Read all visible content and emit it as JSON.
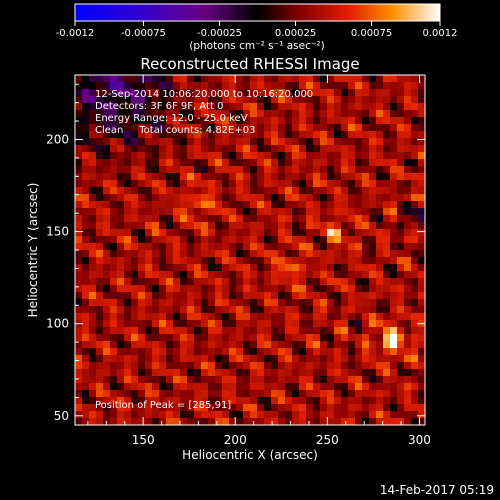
{
  "chart_data": {
    "type": "heatmap",
    "title": "Reconstructed RHESSI Image",
    "xlabel": "Heliocentric X (arcsec)",
    "ylabel": "Heliocentric Y (arcsec)",
    "xlim": [
      113,
      303
    ],
    "ylim": [
      45,
      235
    ],
    "xticks": [
      150,
      200,
      250,
      300
    ],
    "yticks": [
      50,
      100,
      150,
      200
    ],
    "colorbar": {
      "min": -0.0012,
      "max": 0.0012,
      "ticks": [
        "-0.0012",
        "-0.00075",
        "-0.00025",
        "0.00025",
        "0.00075",
        "0.0012"
      ],
      "tick_values": [
        -0.0012,
        -0.00075,
        -0.00025,
        0.00025,
        0.00075,
        0.0012
      ],
      "unit_label": "(photons cm⁻² s⁻¹ asec⁻²)"
    },
    "annotations": [
      "12-Sep-2014 10:06:20.000 to 10:16:20.000",
      "Detectors: 3F 6F 9F, Att 0",
      "Energy Range: 12.0 - 25.0 keV",
      "Clean     Total counts: 4.82E+03"
    ],
    "peak_label": "Position of Peak = [285,91]",
    "peak": [
      285,
      91
    ],
    "hot_spots": [
      {
        "x": 285,
        "y": 91,
        "strength": 1.0
      },
      {
        "x": 180,
        "y": 165,
        "strength": 0.55
      },
      {
        "x": 230,
        "y": 130,
        "strength": 0.5
      },
      {
        "x": 255,
        "y": 150,
        "strength": 0.5
      }
    ],
    "cold_ring": {
      "x": 296,
      "y": 158
    }
  },
  "timestamp": "14-Feb-2017 05:19"
}
